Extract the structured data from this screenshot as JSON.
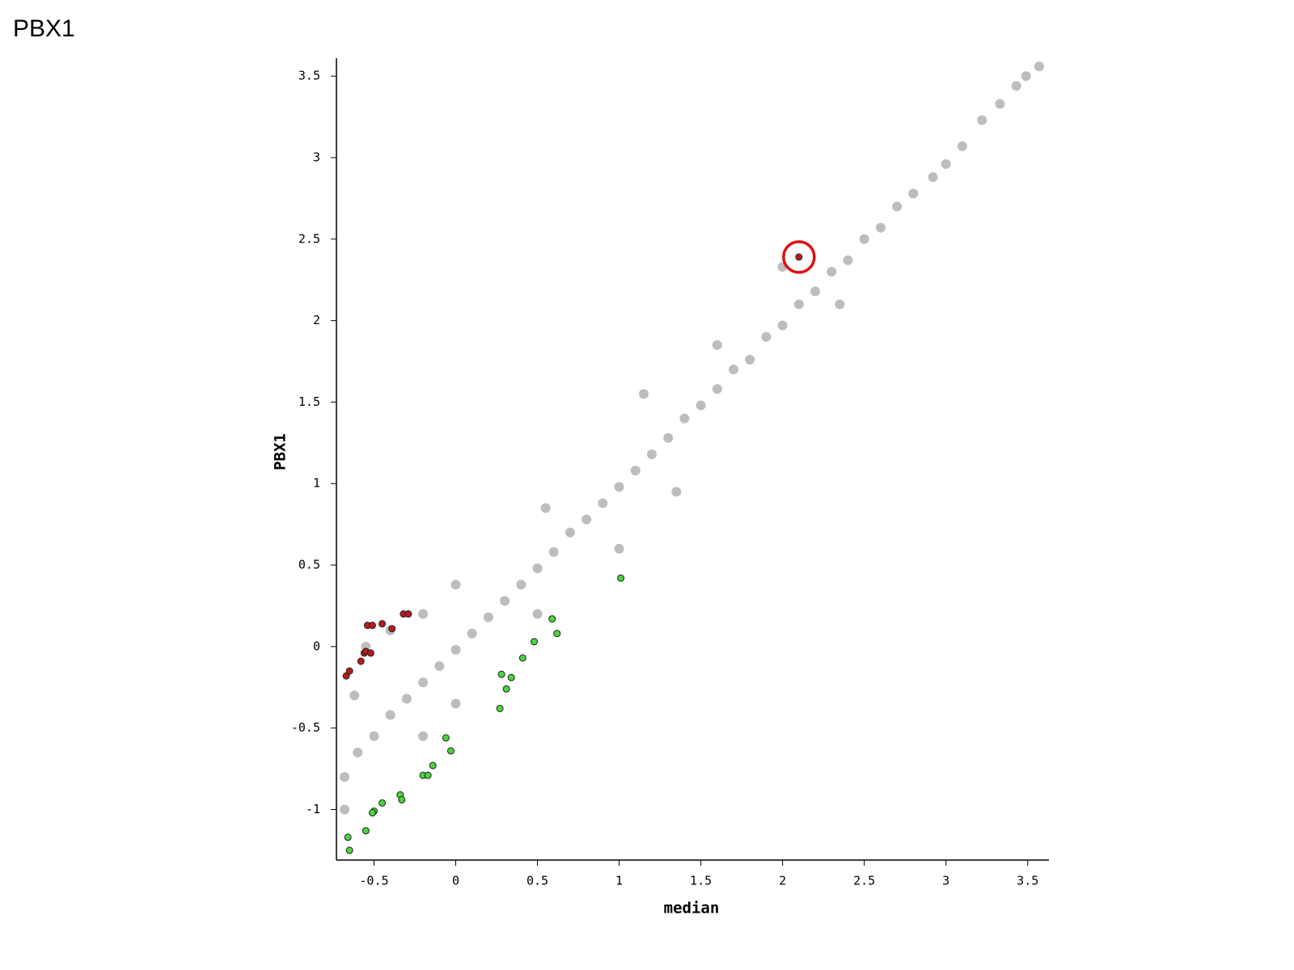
{
  "page_title": "PBX1",
  "chart_data": {
    "type": "scatter",
    "xlabel": "median",
    "ylabel": "PBX1",
    "xlim": [
      -0.73,
      3.63
    ],
    "ylim": [
      -1.31,
      3.61
    ],
    "xticks": [
      -0.5,
      0,
      0.5,
      1,
      1.5,
      2,
      2.5,
      3,
      3.5
    ],
    "yticks": [
      -1,
      -0.5,
      0,
      0.5,
      1,
      1.5,
      2,
      2.5,
      3,
      3.5
    ],
    "series": [
      {
        "color": "#bdbdbd",
        "x": [
          3.57,
          3.49,
          3.43,
          3.33,
          3.22,
          3.1,
          3.0,
          2.92,
          2.8,
          2.7,
          2.6,
          2.5,
          2.4,
          2.3,
          2.2,
          2.1,
          2.0,
          1.9,
          1.8,
          1.7,
          1.6,
          1.5,
          1.4,
          1.3,
          1.2,
          1.1,
          1.0,
          0.9,
          0.8,
          0.7,
          0.6,
          0.5,
          0.4,
          0.3,
          0.2,
          0.1,
          0,
          -0.1,
          -0.2,
          -0.3,
          -0.4,
          -0.5,
          -0.6,
          -0.68,
          -0.68,
          -0.62,
          -0.55,
          -0.4,
          -0.2,
          0,
          0.55,
          1.15,
          1.6,
          2.0,
          1.0,
          0.5,
          0.0,
          -0.2,
          1.35,
          2.35
        ],
        "values": [
          3.56,
          3.5,
          3.44,
          3.33,
          3.23,
          3.07,
          2.96,
          2.88,
          2.78,
          2.7,
          2.57,
          2.5,
          2.37,
          2.3,
          2.18,
          2.1,
          1.97,
          1.9,
          1.76,
          1.7,
          1.58,
          1.48,
          1.4,
          1.28,
          1.18,
          1.08,
          0.98,
          0.88,
          0.78,
          0.7,
          0.58,
          0.48,
          0.38,
          0.28,
          0.18,
          0.08,
          -0.02,
          -0.12,
          -0.22,
          -0.32,
          -0.42,
          -0.55,
          -0.65,
          -0.8,
          -1.0,
          -0.3,
          0.0,
          0.1,
          0.2,
          0.38,
          0.85,
          1.55,
          1.85,
          2.33,
          0.6,
          0.2,
          -0.35,
          -0.55,
          0.95,
          2.1
        ]
      },
      {
        "color": "#b71c1c",
        "edgecolor": "#222222",
        "x": [
          2.1,
          -0.67,
          -0.65,
          -0.58,
          -0.56,
          -0.55,
          -0.52,
          -0.54,
          -0.51,
          -0.45,
          -0.39,
          -0.32,
          -0.29
        ],
        "values": [
          2.39,
          -0.18,
          -0.15,
          -0.09,
          -0.04,
          -0.03,
          -0.04,
          0.13,
          0.13,
          0.14,
          0.11,
          0.2,
          0.2
        ]
      },
      {
        "color": "#4cd43c",
        "edgecolor": "#222222",
        "x": [
          1.01,
          0.59,
          0.62,
          0.48,
          0.41,
          0.28,
          0.34,
          0.31,
          0.27,
          -0.06,
          -0.03,
          -0.14,
          -0.2,
          -0.17,
          -0.34,
          -0.33,
          -0.45,
          -0.5,
          -0.51,
          -0.55,
          -0.66,
          -0.65
        ],
        "values": [
          0.42,
          0.17,
          0.08,
          0.03,
          -0.07,
          -0.17,
          -0.19,
          -0.26,
          -0.38,
          -0.56,
          -0.64,
          -0.73,
          -0.79,
          -0.79,
          -0.91,
          -0.94,
          -0.96,
          -1.01,
          -1.02,
          -1.13,
          -1.17,
          -1.25
        ]
      }
    ]
  }
}
